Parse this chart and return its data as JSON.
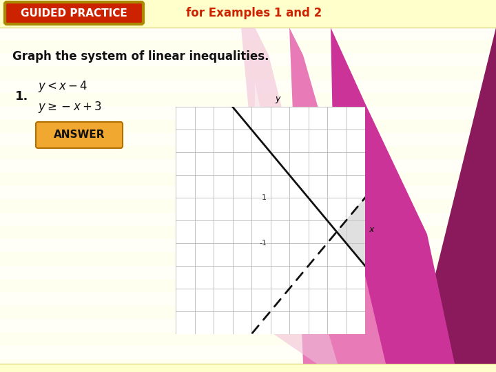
{
  "title_text": "GUIDED PRACTICE",
  "subtitle_text": "for Examples 1 and 2",
  "main_text": "Graph the system of linear inequalities.",
  "number_label": "1.",
  "answer_label": "ANSWER",
  "bg_color": "#fafae8",
  "header_bg": "#ffffcc",
  "guided_btn_color": "#cc2200",
  "guided_btn_border": "#aa8800",
  "answer_btn_color": "#f0a830",
  "graph_xlim": [
    -5,
    5
  ],
  "graph_ylim": [
    -5,
    5
  ],
  "line1_slope": 1,
  "line1_intercept": -4,
  "line2_slope": -1,
  "line2_intercept": 3,
  "shade_color": "#c8c8c8",
  "shade_alpha": 0.55,
  "axis_label_x": "x",
  "axis_label_y": "y",
  "tick_label_1": "1",
  "tick_label_m1": "-1",
  "grid_color": "#aaaaaa",
  "line_color": "#111111",
  "stripe_color1": "#fffff0",
  "stripe_color2": "#fffff8",
  "pink_dark": "#8b1a5c",
  "pink_mid": "#cc3399",
  "pink_light": "#e87ab8",
  "pink_vlight": "#f0c0d8"
}
